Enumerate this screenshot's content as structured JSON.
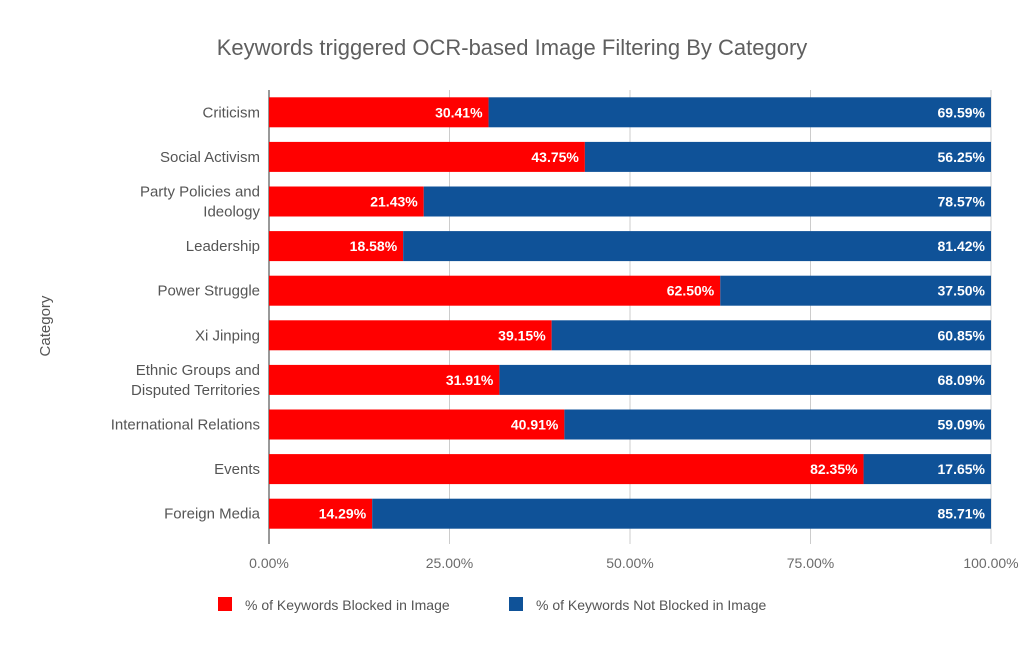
{
  "chart_data": {
    "type": "bar",
    "orientation": "horizontal",
    "stacked": true,
    "title": "Keywords triggered OCR-based Image Filtering By Category",
    "ylabel": "Category",
    "xlabel": "",
    "xlim": [
      0,
      100
    ],
    "x_ticks": [
      "0.00%",
      "25.00%",
      "50.00%",
      "75.00%",
      "100.00%"
    ],
    "grid": true,
    "legend_position": "bottom",
    "categories": [
      [
        "Criticism"
      ],
      [
        "Social Activism"
      ],
      [
        "Party Policies and",
        "Ideology"
      ],
      [
        "Leadership"
      ],
      [
        "Power Struggle"
      ],
      [
        "Xi Jinping"
      ],
      [
        "Ethnic Groups and",
        "Disputed Territories"
      ],
      [
        "International Relations"
      ],
      [
        "Events"
      ],
      [
        "Foreign Media"
      ]
    ],
    "series": [
      {
        "name": "% of Keywords Blocked in Image",
        "color": "#ff0000",
        "values": [
          30.41,
          43.75,
          21.43,
          18.58,
          62.5,
          39.15,
          31.91,
          40.91,
          82.35,
          14.29
        ],
        "labels": [
          "30.41%",
          "43.75%",
          "21.43%",
          "18.58%",
          "62.50%",
          "39.15%",
          "31.91%",
          "40.91%",
          "82.35%",
          "14.29%"
        ]
      },
      {
        "name": "% of Keywords Not Blocked in Image",
        "color": "#0f5298",
        "values": [
          69.59,
          56.25,
          78.57,
          81.42,
          37.5,
          60.85,
          68.09,
          59.09,
          17.65,
          85.71
        ],
        "labels": [
          "69.59%",
          "56.25%",
          "78.57%",
          "81.42%",
          "37.50%",
          "60.85%",
          "68.09%",
          "59.09%",
          "17.65%",
          "85.71%"
        ]
      }
    ]
  }
}
